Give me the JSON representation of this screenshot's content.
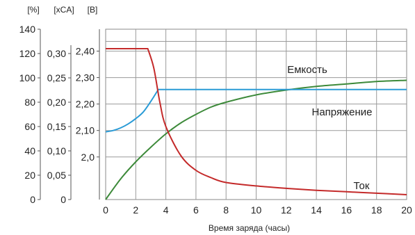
{
  "chart_data": {
    "type": "line",
    "title": "",
    "xlabel": "Время заряда (часы)",
    "xlim": [
      0,
      20
    ],
    "x_ticks": [
      0,
      2,
      4,
      6,
      8,
      10,
      12,
      14,
      16,
      18,
      20
    ],
    "grid": true,
    "axes": [
      {
        "unit": "[%]",
        "ylim": [
          0,
          140
        ],
        "ticks": [
          0,
          20,
          40,
          60,
          80,
          100,
          120,
          140
        ]
      },
      {
        "unit": "[xCA]",
        "ylim": [
          0,
          0.35
        ],
        "ticks": [
          0,
          0.05,
          0.1,
          0.15,
          0.2,
          0.25,
          0.3
        ],
        "tick_labels": [
          "0",
          "0,05",
          "0,10",
          "0,15",
          "0,20",
          "0,25",
          "0,30"
        ]
      },
      {
        "unit": "[B]",
        "ylim": [
          1.9,
          2.48
        ],
        "ticks": [
          2.0,
          2.1,
          2.2,
          2.3,
          2.4
        ],
        "tick_labels": [
          "2,0",
          "2,10",
          "2,20",
          "2,30",
          "2,40"
        ]
      }
    ],
    "series": [
      {
        "name": "Емкость",
        "axis": "[%]",
        "color": "#3d8a3a",
        "x": [
          0,
          1,
          2,
          3,
          4,
          5,
          6,
          7,
          8,
          10,
          12,
          14,
          16,
          18,
          20
        ],
        "y": [
          0,
          17,
          31,
          43,
          54,
          63,
          70,
          76,
          80,
          86,
          90,
          93,
          95,
          97,
          98
        ]
      },
      {
        "name": "Напряжение",
        "axis": "[B]",
        "color": "#2a9bd6",
        "x": [
          0,
          0.5,
          1,
          1.5,
          2,
          2.5,
          3,
          3.5,
          4,
          6,
          8,
          10,
          12,
          14,
          16,
          18,
          20
        ],
        "y": [
          2.095,
          2.1,
          2.11,
          2.125,
          2.145,
          2.17,
          2.21,
          2.255,
          2.255,
          2.255,
          2.255,
          2.255,
          2.255,
          2.255,
          2.255,
          2.255,
          2.255
        ]
      },
      {
        "name": "Ток",
        "axis": "[xCA]",
        "color": "#c42a2a",
        "x": [
          0,
          1,
          2,
          2.8,
          3.2,
          3.6,
          4,
          5,
          6,
          7,
          8,
          10,
          12,
          14,
          16,
          18,
          20
        ],
        "y": [
          0.31,
          0.31,
          0.31,
          0.31,
          0.27,
          0.2,
          0.15,
          0.09,
          0.06,
          0.045,
          0.035,
          0.028,
          0.023,
          0.019,
          0.016,
          0.013,
          0.01
        ]
      }
    ]
  }
}
